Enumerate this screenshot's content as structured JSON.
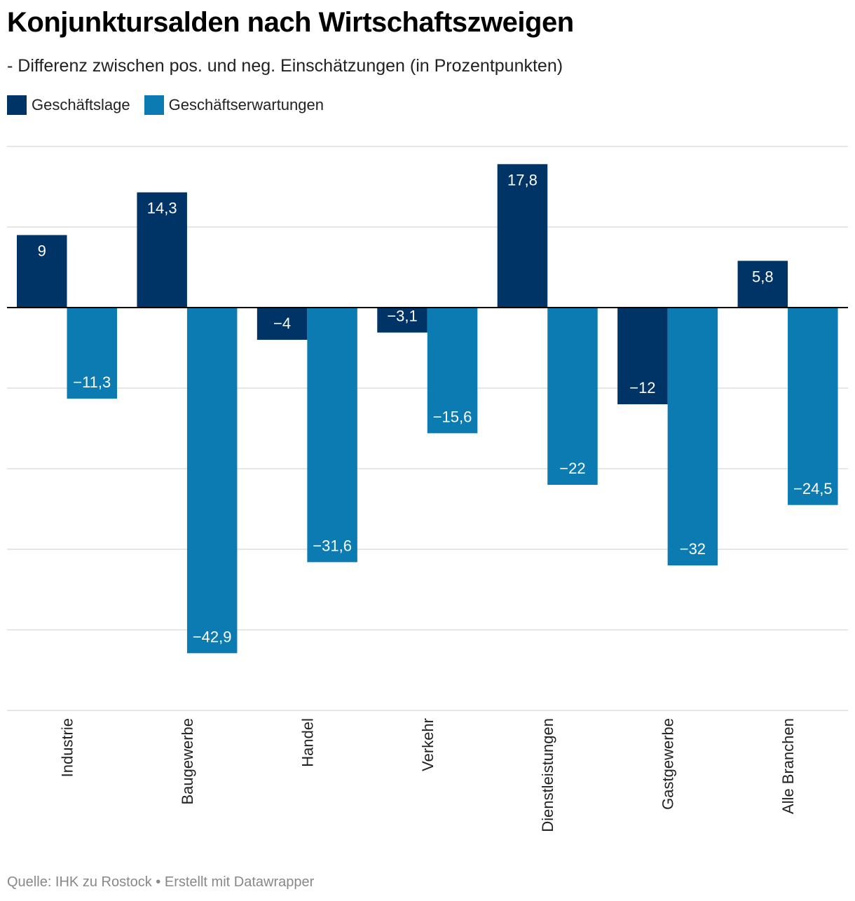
{
  "header": {
    "title": "Konjunktursalden nach Wirtschaftszweigen",
    "subtitle": "- Differenz zwischen pos. und neg. Einschätzungen (in Prozentpunkten)"
  },
  "legend": [
    {
      "label": "Geschäftslage",
      "color": "#003366"
    },
    {
      "label": "Geschäftserwartungen",
      "color": "#0b7bb2"
    }
  ],
  "footer": {
    "source": "Quelle: IHK zu Rostock • Erstellt mit Datawrapper"
  },
  "chart_data": {
    "type": "bar",
    "categories": [
      "Industrie",
      "Baugewerbe",
      "Handel",
      "Verkehr",
      "Dienstleistungen",
      "Gastgewerbe",
      "Alle Branchen"
    ],
    "series": [
      {
        "name": "Geschäftslage",
        "color": "#003366",
        "values": [
          9,
          14.3,
          -4,
          -3.1,
          17.8,
          -12,
          5.8
        ],
        "labels": [
          "9",
          "14,3",
          "−4",
          "−3,1",
          "17,8",
          "−12",
          "5,8"
        ]
      },
      {
        "name": "Geschäftserwartungen",
        "color": "#0b7bb2",
        "values": [
          -11.3,
          -42.9,
          -31.6,
          -15.6,
          -22,
          -32,
          -24.5
        ],
        "labels": [
          "−11,3",
          "−42,9",
          "−31,6",
          "−15,6",
          "−22",
          "−32",
          "−24,5"
        ]
      }
    ],
    "ylim": [
      -50,
      20
    ],
    "grid": true,
    "legend": "top-left"
  }
}
